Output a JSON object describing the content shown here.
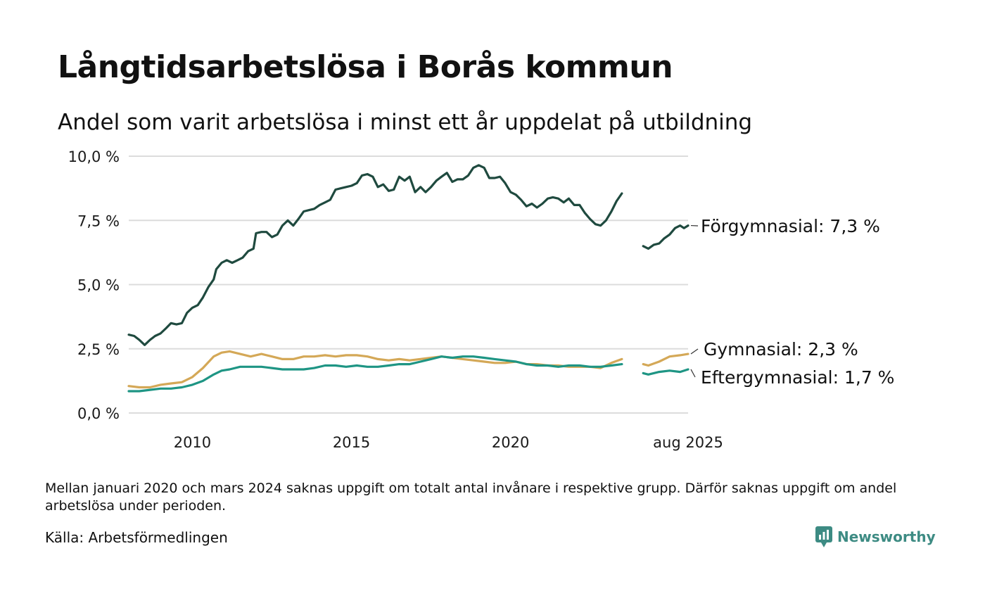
{
  "title": "Långtidsarbetslösa i Borås kommun",
  "subtitle": "Andel som varit arbetslösa i minst ett år uppdelat på utbildning",
  "footnote": "Mellan januari 2020 och mars 2024 saknas uppgift om totalt antal invånare i respektive grupp. Därför saknas uppgift om andel arbetslösa under perioden.",
  "source": "Källa: Arbetsförmedlingen",
  "brand": {
    "name": "Newsworthy",
    "color": "#3d8b83",
    "icon": "newsworthy-logo-icon"
  },
  "chart_data": {
    "type": "line",
    "title": "Långtidsarbetslösa i Borås kommun",
    "ylim": [
      0,
      10
    ],
    "xlim": [
      2008.0,
      2025.58
    ],
    "grid": true,
    "y_ticks": [
      {
        "value": 0,
        "label": "0,0 %"
      },
      {
        "value": 2.5,
        "label": "2,5 %"
      },
      {
        "value": 5,
        "label": "5,0 %"
      },
      {
        "value": 7.5,
        "label": "7,5 %"
      },
      {
        "value": 10,
        "label": "10,0 %"
      }
    ],
    "x_ticks": [
      {
        "value": 2010,
        "label": "2010"
      },
      {
        "value": 2015,
        "label": "2015"
      },
      {
        "value": 2020,
        "label": "2020"
      },
      {
        "value": 2025.58,
        "label": "aug 2025"
      }
    ],
    "series": [
      {
        "name": "Förgymnasial",
        "end_label": "Förgymnasial: 7,3 %",
        "color": "#1f4a3f",
        "segments": [
          [
            [
              2008.0,
              3.05
            ],
            [
              2008.17,
              3.0
            ],
            [
              2008.33,
              2.85
            ],
            [
              2008.5,
              2.65
            ],
            [
              2008.67,
              2.85
            ],
            [
              2008.83,
              3.0
            ],
            [
              2009.0,
              3.1
            ],
            [
              2009.17,
              3.3
            ],
            [
              2009.33,
              3.5
            ],
            [
              2009.5,
              3.45
            ],
            [
              2009.67,
              3.5
            ],
            [
              2009.83,
              3.9
            ],
            [
              2010.0,
              4.1
            ],
            [
              2010.17,
              4.2
            ],
            [
              2010.33,
              4.5
            ],
            [
              2010.5,
              4.9
            ],
            [
              2010.67,
              5.2
            ],
            [
              2010.75,
              5.6
            ],
            [
              2010.92,
              5.85
            ],
            [
              2011.08,
              5.95
            ],
            [
              2011.25,
              5.85
            ],
            [
              2011.42,
              5.95
            ],
            [
              2011.58,
              6.05
            ],
            [
              2011.75,
              6.3
            ],
            [
              2011.92,
              6.4
            ],
            [
              2012.0,
              7.0
            ],
            [
              2012.17,
              7.05
            ],
            [
              2012.33,
              7.05
            ],
            [
              2012.5,
              6.85
            ],
            [
              2012.67,
              6.95
            ],
            [
              2012.83,
              7.3
            ],
            [
              2013.0,
              7.5
            ],
            [
              2013.17,
              7.3
            ],
            [
              2013.33,
              7.55
            ],
            [
              2013.5,
              7.85
            ],
            [
              2013.67,
              7.9
            ],
            [
              2013.83,
              7.95
            ],
            [
              2014.0,
              8.1
            ],
            [
              2014.17,
              8.2
            ],
            [
              2014.33,
              8.3
            ],
            [
              2014.5,
              8.7
            ],
            [
              2014.67,
              8.75
            ],
            [
              2014.83,
              8.8
            ],
            [
              2015.0,
              8.85
            ],
            [
              2015.17,
              8.95
            ],
            [
              2015.33,
              9.25
            ],
            [
              2015.5,
              9.3
            ],
            [
              2015.67,
              9.2
            ],
            [
              2015.83,
              8.8
            ],
            [
              2016.0,
              8.9
            ],
            [
              2016.17,
              8.65
            ],
            [
              2016.33,
              8.7
            ],
            [
              2016.5,
              9.2
            ],
            [
              2016.67,
              9.05
            ],
            [
              2016.83,
              9.2
            ],
            [
              2017.0,
              8.6
            ],
            [
              2017.17,
              8.8
            ],
            [
              2017.33,
              8.6
            ],
            [
              2017.5,
              8.8
            ],
            [
              2017.67,
              9.05
            ],
            [
              2017.83,
              9.2
            ],
            [
              2018.0,
              9.35
            ],
            [
              2018.17,
              9.0
            ],
            [
              2018.33,
              9.1
            ],
            [
              2018.5,
              9.1
            ],
            [
              2018.67,
              9.25
            ],
            [
              2018.83,
              9.55
            ],
            [
              2019.0,
              9.65
            ],
            [
              2019.17,
              9.55
            ],
            [
              2019.33,
              9.15
            ],
            [
              2019.5,
              9.15
            ],
            [
              2019.67,
              9.2
            ],
            [
              2019.83,
              8.95
            ],
            [
              2020.0,
              8.6
            ],
            [
              2020.17,
              8.5
            ],
            [
              2020.33,
              8.3
            ],
            [
              2020.5,
              8.05
            ],
            [
              2020.67,
              8.15
            ],
            [
              2020.83,
              8.0
            ],
            [
              2021.0,
              8.15
            ],
            [
              2021.17,
              8.35
            ],
            [
              2021.33,
              8.4
            ],
            [
              2021.5,
              8.35
            ],
            [
              2021.67,
              8.2
            ],
            [
              2021.83,
              8.35
            ],
            [
              2022.0,
              8.1
            ],
            [
              2022.17,
              8.1
            ],
            [
              2022.33,
              7.8
            ],
            [
              2022.5,
              7.55
            ],
            [
              2022.67,
              7.35
            ],
            [
              2022.83,
              7.3
            ],
            [
              2023.0,
              7.5
            ],
            [
              2023.17,
              7.85
            ],
            [
              2023.33,
              8.25
            ],
            [
              2023.5,
              8.55
            ]
          ],
          [
            [
              2024.17,
              6.5
            ],
            [
              2024.33,
              6.4
            ],
            [
              2024.5,
              6.55
            ],
            [
              2024.67,
              6.6
            ],
            [
              2024.83,
              6.8
            ],
            [
              2025.0,
              6.95
            ],
            [
              2025.17,
              7.2
            ],
            [
              2025.33,
              7.3
            ],
            [
              2025.45,
              7.2
            ],
            [
              2025.58,
              7.3
            ]
          ]
        ]
      },
      {
        "name": "Gymnasial",
        "end_label": "Gymnasial: 2,3 %",
        "color": "#d4a857",
        "segments": [
          [
            [
              2008.0,
              1.05
            ],
            [
              2008.33,
              1.0
            ],
            [
              2008.67,
              1.0
            ],
            [
              2009.0,
              1.1
            ],
            [
              2009.33,
              1.15
            ],
            [
              2009.67,
              1.2
            ],
            [
              2010.0,
              1.4
            ],
            [
              2010.33,
              1.75
            ],
            [
              2010.67,
              2.2
            ],
            [
              2010.92,
              2.35
            ],
            [
              2011.17,
              2.4
            ],
            [
              2011.5,
              2.3
            ],
            [
              2011.83,
              2.2
            ],
            [
              2012.17,
              2.3
            ],
            [
              2012.5,
              2.2
            ],
            [
              2012.83,
              2.1
            ],
            [
              2013.17,
              2.1
            ],
            [
              2013.5,
              2.2
            ],
            [
              2013.83,
              2.2
            ],
            [
              2014.17,
              2.25
            ],
            [
              2014.5,
              2.2
            ],
            [
              2014.83,
              2.25
            ],
            [
              2015.17,
              2.25
            ],
            [
              2015.5,
              2.2
            ],
            [
              2015.83,
              2.1
            ],
            [
              2016.17,
              2.05
            ],
            [
              2016.5,
              2.1
            ],
            [
              2016.83,
              2.05
            ],
            [
              2017.17,
              2.1
            ],
            [
              2017.5,
              2.15
            ],
            [
              2017.83,
              2.2
            ],
            [
              2018.17,
              2.15
            ],
            [
              2018.5,
              2.1
            ],
            [
              2018.83,
              2.05
            ],
            [
              2019.17,
              2.0
            ],
            [
              2019.5,
              1.95
            ],
            [
              2019.83,
              1.95
            ],
            [
              2020.17,
              2.0
            ],
            [
              2020.5,
              1.9
            ],
            [
              2020.83,
              1.9
            ],
            [
              2021.17,
              1.85
            ],
            [
              2021.5,
              1.85
            ],
            [
              2021.83,
              1.8
            ],
            [
              2022.17,
              1.8
            ],
            [
              2022.5,
              1.8
            ],
            [
              2022.83,
              1.75
            ],
            [
              2023.17,
              1.95
            ],
            [
              2023.5,
              2.1
            ]
          ],
          [
            [
              2024.17,
              1.9
            ],
            [
              2024.33,
              1.85
            ],
            [
              2024.67,
              2.0
            ],
            [
              2025.0,
              2.2
            ],
            [
              2025.33,
              2.25
            ],
            [
              2025.58,
              2.3
            ]
          ]
        ]
      },
      {
        "name": "Eftergymnasial",
        "end_label": "Eftergymnasial: 1,7 %",
        "color": "#1e9584",
        "segments": [
          [
            [
              2008.0,
              0.85
            ],
            [
              2008.33,
              0.85
            ],
            [
              2008.67,
              0.9
            ],
            [
              2009.0,
              0.95
            ],
            [
              2009.33,
              0.95
            ],
            [
              2009.67,
              1.0
            ],
            [
              2010.0,
              1.1
            ],
            [
              2010.33,
              1.25
            ],
            [
              2010.67,
              1.5
            ],
            [
              2010.92,
              1.65
            ],
            [
              2011.17,
              1.7
            ],
            [
              2011.5,
              1.8
            ],
            [
              2011.83,
              1.8
            ],
            [
              2012.17,
              1.8
            ],
            [
              2012.5,
              1.75
            ],
            [
              2012.83,
              1.7
            ],
            [
              2013.17,
              1.7
            ],
            [
              2013.5,
              1.7
            ],
            [
              2013.83,
              1.75
            ],
            [
              2014.17,
              1.85
            ],
            [
              2014.5,
              1.85
            ],
            [
              2014.83,
              1.8
            ],
            [
              2015.17,
              1.85
            ],
            [
              2015.5,
              1.8
            ],
            [
              2015.83,
              1.8
            ],
            [
              2016.17,
              1.85
            ],
            [
              2016.5,
              1.9
            ],
            [
              2016.83,
              1.9
            ],
            [
              2017.17,
              2.0
            ],
            [
              2017.5,
              2.1
            ],
            [
              2017.83,
              2.2
            ],
            [
              2018.17,
              2.15
            ],
            [
              2018.5,
              2.2
            ],
            [
              2018.83,
              2.2
            ],
            [
              2019.17,
              2.15
            ],
            [
              2019.5,
              2.1
            ],
            [
              2019.83,
              2.05
            ],
            [
              2020.17,
              2.0
            ],
            [
              2020.5,
              1.9
            ],
            [
              2020.83,
              1.85
            ],
            [
              2021.17,
              1.85
            ],
            [
              2021.5,
              1.8
            ],
            [
              2021.83,
              1.85
            ],
            [
              2022.17,
              1.85
            ],
            [
              2022.5,
              1.8
            ],
            [
              2022.83,
              1.8
            ],
            [
              2023.17,
              1.85
            ],
            [
              2023.5,
              1.9
            ]
          ],
          [
            [
              2024.17,
              1.55
            ],
            [
              2024.33,
              1.5
            ],
            [
              2024.67,
              1.6
            ],
            [
              2025.0,
              1.65
            ],
            [
              2025.33,
              1.6
            ],
            [
              2025.58,
              1.7
            ]
          ]
        ]
      }
    ]
  }
}
